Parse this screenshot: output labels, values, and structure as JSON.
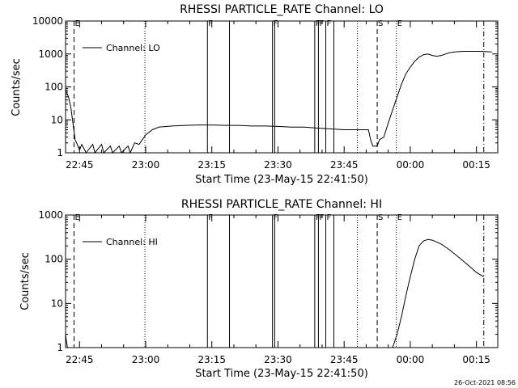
{
  "footer": {
    "timestamp": "26-Oct-2021 08:56"
  },
  "chart_data": [
    {
      "type": "line",
      "title": "RHESSI PARTICLE_RATE Channel: LO",
      "xlabel": "Start Time (23-May-15 22:41:50)",
      "ylabel": "Counts/sec",
      "yscale": "log",
      "ylim": [
        1,
        10000
      ],
      "yticks": [
        1,
        10,
        100,
        1000,
        10000
      ],
      "ytick_labels": [
        "1",
        "10",
        "100",
        "1000",
        "10000"
      ],
      "xlim": [
        "22:41:50",
        "00:19:50"
      ],
      "xticks": [
        "22:45",
        "23:00",
        "23:15",
        "23:30",
        "23:45",
        "00:00",
        "00:15"
      ],
      "legend": {
        "label": "Channel: LO",
        "position": "top-left"
      },
      "markers": [
        {
          "time": "22:43:45",
          "label": "E",
          "style": "dashed"
        },
        {
          "time": "22:59:50",
          "label": "",
          "style": "dotted"
        },
        {
          "time": "23:14:00",
          "label": "F",
          "style": "solid"
        },
        {
          "time": "23:19:00",
          "label": "",
          "style": "solid"
        },
        {
          "time": "23:28:45",
          "label": "F",
          "style": "solid"
        },
        {
          "time": "23:29:15",
          "label": "",
          "style": "solid"
        },
        {
          "time": "23:38:20",
          "label": "F",
          "style": "solid"
        },
        {
          "time": "23:39:10",
          "label": "F",
          "style": "solid"
        },
        {
          "time": "23:40:50",
          "label": "F",
          "style": "solid"
        },
        {
          "time": "23:42:40",
          "label": "",
          "style": "solid"
        },
        {
          "time": "23:48:00",
          "label": "",
          "style": "dotted"
        },
        {
          "time": "23:52:30",
          "label": "S",
          "style": "dashed"
        },
        {
          "time": "23:56:50",
          "label": "E",
          "style": "dotted"
        },
        {
          "time": "00:16:40",
          "label": "",
          "style": "dashdot"
        }
      ],
      "series": [
        {
          "name": "Channel: LO",
          "x": [
            "22:41:50",
            "22:42:30",
            "22:43:00",
            "22:43:30",
            "22:44:00",
            "22:44:30",
            "22:45:00",
            "22:45:30",
            "22:46:30",
            "22:48:00",
            "22:48:30",
            "22:50:00",
            "22:50:30",
            "22:52:00",
            "22:52:30",
            "22:54:00",
            "22:54:30",
            "22:56:00",
            "22:56:30",
            "22:57:30",
            "22:58:30",
            "23:00:00",
            "23:01:30",
            "23:03:00",
            "23:06:00",
            "23:09:00",
            "23:12:00",
            "23:15:00",
            "23:18:00",
            "23:21:00",
            "23:24:00",
            "23:27:00",
            "23:30:00",
            "23:33:00",
            "23:36:00",
            "23:39:00",
            "23:42:00",
            "23:45:00",
            "23:48:00",
            "23:50:30",
            "23:51:00",
            "23:51:30",
            "23:52:30",
            "23:53:00",
            "23:54:00",
            "23:55:00",
            "23:56:00",
            "23:57:00",
            "23:58:00",
            "23:59:00",
            "00:00:00",
            "00:01:00",
            "00:02:00",
            "00:03:00",
            "00:04:00",
            "00:05:00",
            "00:06:00",
            "00:07:00",
            "00:08:00",
            "00:09:00",
            "00:10:00",
            "00:12:00",
            "00:14:00",
            "00:16:00",
            "00:18:30"
          ],
          "y": [
            80,
            50,
            25,
            8,
            2.5,
            1.8,
            1.2,
            1.8,
            1,
            1.8,
            1,
            1.8,
            1,
            1.6,
            1,
            1.6,
            1,
            1.6,
            1,
            2,
            1.8,
            3.5,
            5,
            6,
            6.5,
            6.8,
            7,
            7,
            6.8,
            6.8,
            6.5,
            6.5,
            6.3,
            6,
            6,
            5.6,
            5.3,
            5,
            5,
            5,
            2.5,
            1.6,
            1.6,
            2.5,
            3,
            8,
            20,
            50,
            120,
            250,
            400,
            600,
            800,
            950,
            1000,
            900,
            850,
            900,
            1000,
            1100,
            1150,
            1200,
            1200,
            1200,
            1150
          ]
        }
      ]
    },
    {
      "type": "line",
      "title": "RHESSI PARTICLE_RATE Channel: HI",
      "xlabel": "Start Time (23-May-15 22:41:50)",
      "ylabel": "Counts/sec",
      "yscale": "log",
      "ylim": [
        1,
        1000
      ],
      "yticks": [
        1,
        10,
        100,
        1000
      ],
      "ytick_labels": [
        "1",
        "10",
        "100",
        "1000"
      ],
      "xlim": [
        "22:41:50",
        "00:19:50"
      ],
      "xticks": [
        "22:45",
        "23:00",
        "23:15",
        "23:30",
        "23:45",
        "00:00",
        "00:15"
      ],
      "legend": {
        "label": "Channel: HI",
        "position": "top-left"
      },
      "markers": [
        {
          "time": "22:43:45",
          "label": "E",
          "style": "dashed"
        },
        {
          "time": "22:59:50",
          "label": "",
          "style": "dotted"
        },
        {
          "time": "23:14:00",
          "label": "F",
          "style": "solid"
        },
        {
          "time": "23:19:00",
          "label": "",
          "style": "solid"
        },
        {
          "time": "23:28:45",
          "label": "F",
          "style": "solid"
        },
        {
          "time": "23:29:15",
          "label": "",
          "style": "solid"
        },
        {
          "time": "23:38:20",
          "label": "F",
          "style": "solid"
        },
        {
          "time": "23:39:10",
          "label": "F",
          "style": "solid"
        },
        {
          "time": "23:40:50",
          "label": "F",
          "style": "solid"
        },
        {
          "time": "23:42:40",
          "label": "",
          "style": "solid"
        },
        {
          "time": "23:48:00",
          "label": "",
          "style": "dotted"
        },
        {
          "time": "23:52:30",
          "label": "S",
          "style": "dashed"
        },
        {
          "time": "23:56:50",
          "label": "E",
          "style": "dotted"
        },
        {
          "time": "00:16:40",
          "label": "",
          "style": "dashdot"
        }
      ],
      "series": [
        {
          "name": "Channel: HI",
          "x": [
            "22:41:50",
            "22:42:00",
            "22:42:15",
            "23:56:00",
            "23:57:00",
            "23:58:00",
            "23:59:00",
            "00:00:00",
            "00:01:00",
            "00:02:00",
            "00:03:00",
            "00:04:00",
            "00:05:00",
            "00:07:00",
            "00:09:00",
            "00:11:00",
            "00:13:00",
            "00:15:00",
            "00:16:40"
          ],
          "y": [
            2,
            1.5,
            1,
            1,
            2,
            5,
            15,
            40,
            100,
            200,
            260,
            280,
            270,
            220,
            160,
            110,
            75,
            50,
            40
          ]
        }
      ]
    }
  ]
}
